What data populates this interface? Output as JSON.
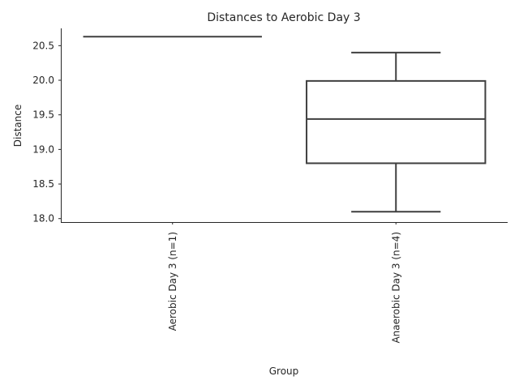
{
  "chart_data": {
    "type": "box",
    "title": "Distances to Aerobic Day 3",
    "xlabel": "Group",
    "ylabel": "Distance",
    "ylim": [
      17.95,
      20.75
    ],
    "yticks": [
      18.0,
      18.5,
      19.0,
      19.5,
      20.0,
      20.5
    ],
    "ytick_labels": [
      "18.0",
      "18.5",
      "19.0",
      "19.5",
      "20.0",
      "20.5"
    ],
    "grid": false,
    "categories": [
      "Aerobic Day 3 (n=1)",
      "Anaerobic Day 3 (n=4)"
    ],
    "boxes": [
      {
        "category": "Aerobic Day 3 (n=1)",
        "min": 20.63,
        "q1": 20.63,
        "median": 20.63,
        "q3": 20.63,
        "max": 20.63
      },
      {
        "category": "Anaerobic Day 3 (n=4)",
        "min": 18.1,
        "q1": 18.8,
        "median": 19.44,
        "q3": 19.99,
        "max": 20.4
      }
    ],
    "line_color": "#3f3f3f",
    "box_fill": "#ffffff",
    "text_color": "#262626"
  }
}
